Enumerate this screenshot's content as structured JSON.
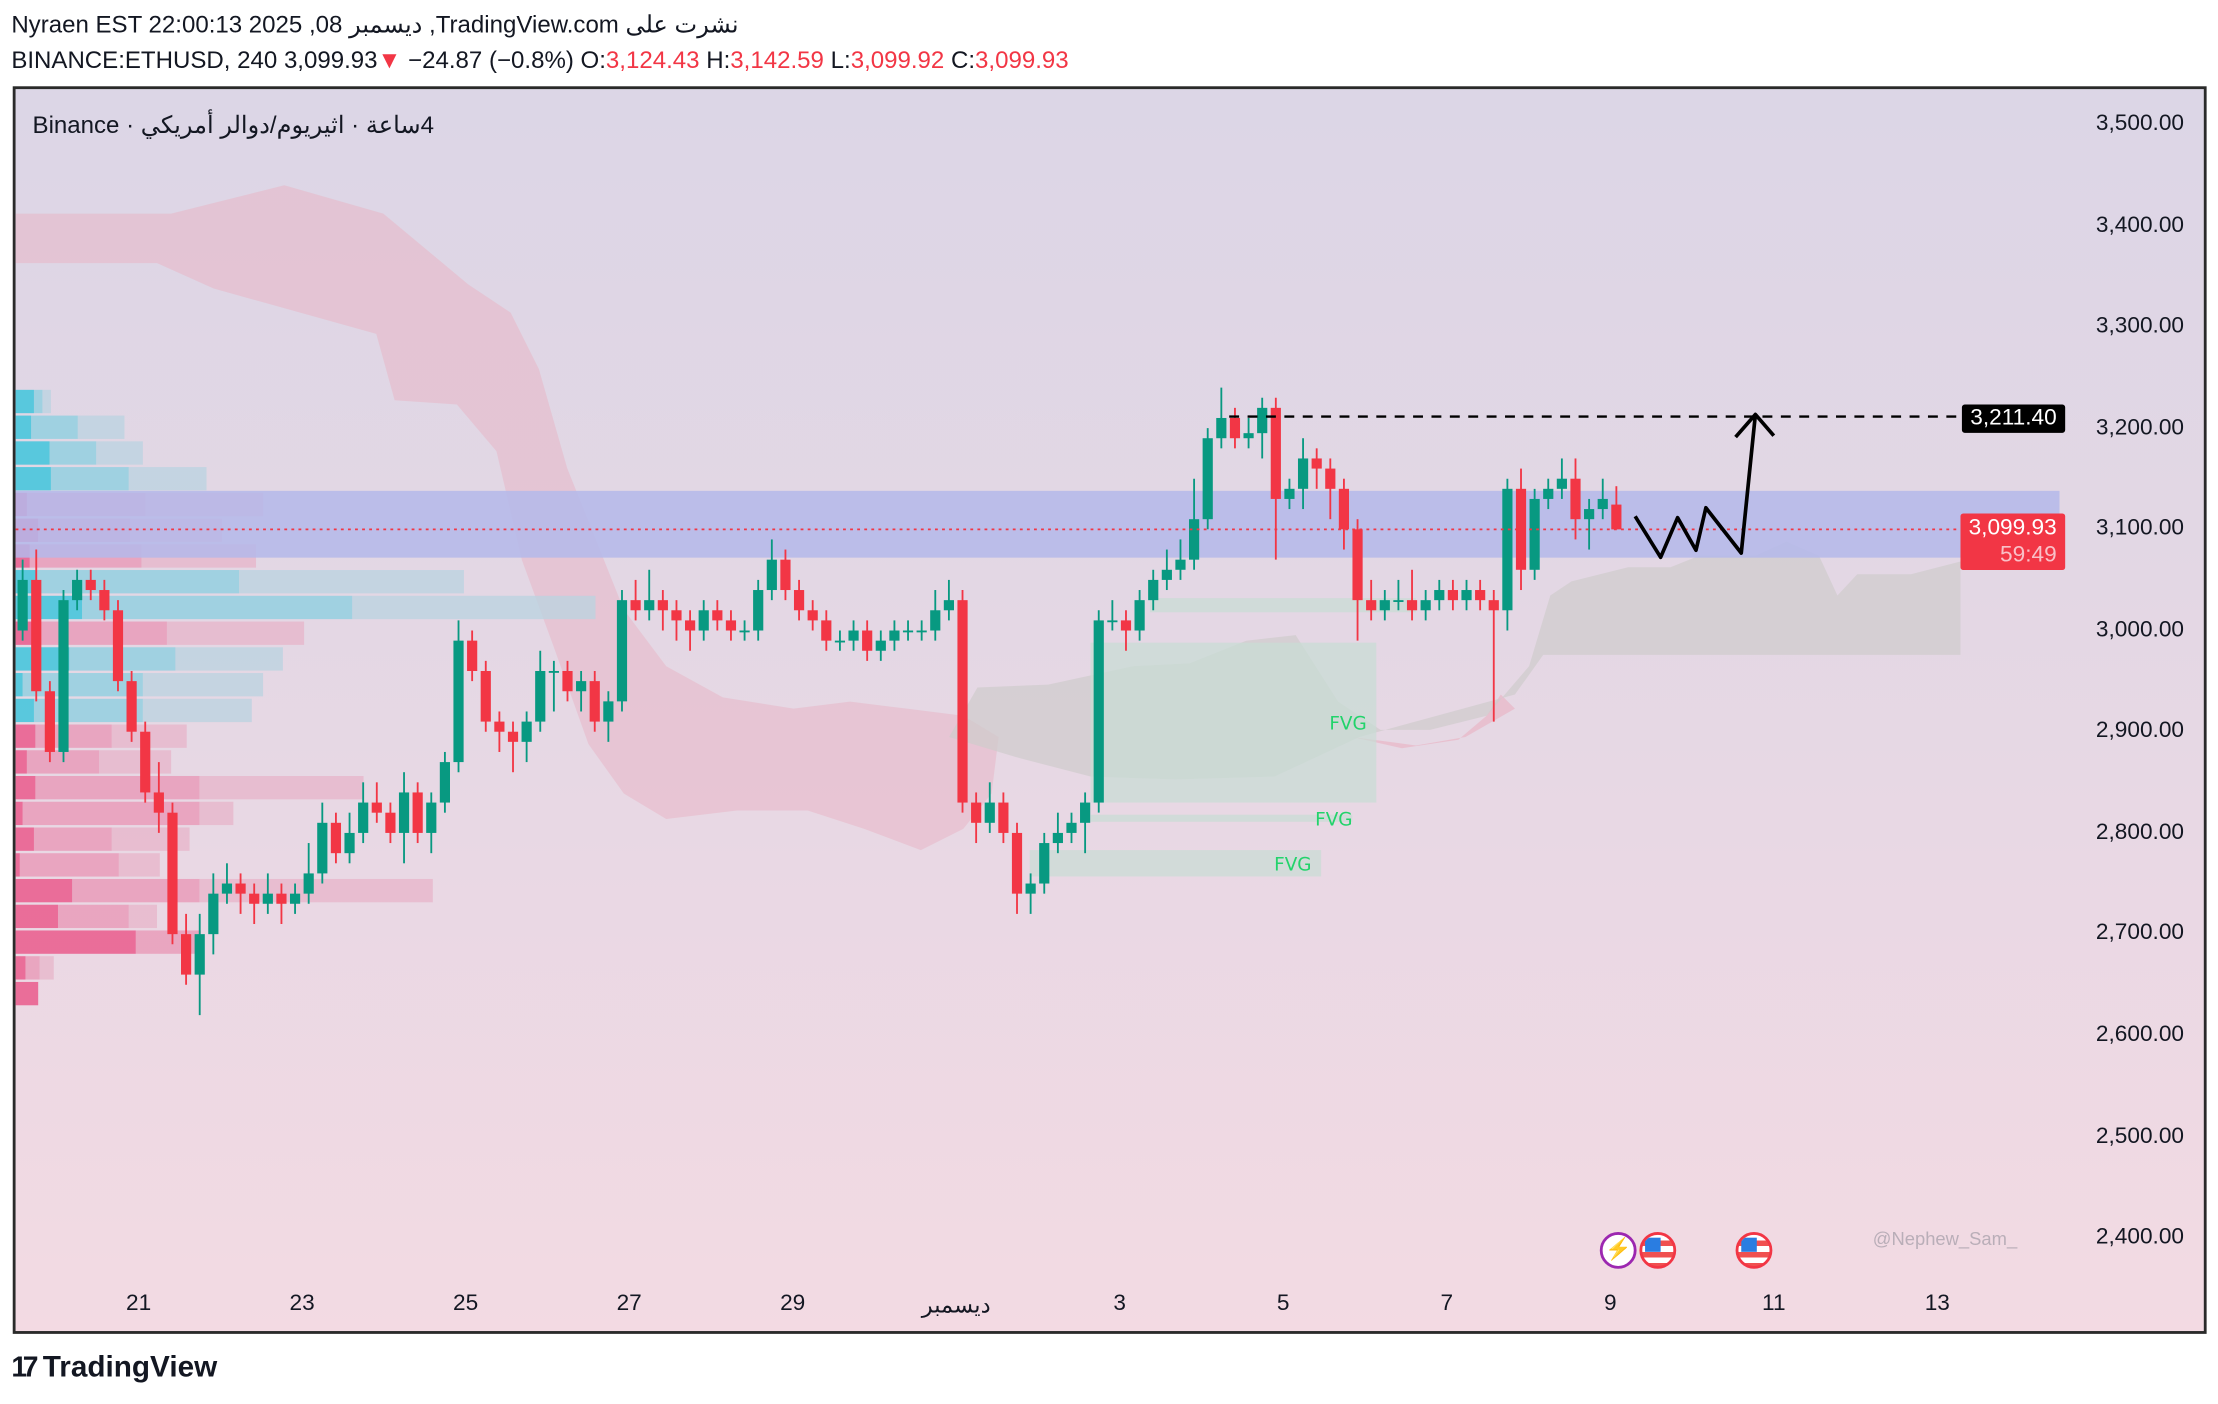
{
  "header": {
    "publish_line": "Nyraen EST 22:00:13 2025 ,08 ربمسيد ,TradingView.com ىلع ترشن",
    "symbol": "BINANCE:ETHUSD, 240",
    "last": "3,099.93",
    "change_arrow": "▼",
    "change": "−24.87 (−0.8%)",
    "o_label": "O:",
    "o": "3,124.43",
    "h_label": "H:",
    "h": "3,142.59",
    "l_label": "L:",
    "l": "3,099.92",
    "c_label": "C:",
    "c": "3,099.93"
  },
  "legend": "Binance · يكيرمأ رلاود/مويريثا · ةعاس4",
  "price_tag_level": "3,211.40",
  "price_tag_last": "3,099.93",
  "price_tag_countdown": "59:49",
  "watermark": "@Nephew_Sam_",
  "footer_logo": "TradingView",
  "footer_logo_mark": "17",
  "events": [
    {
      "icon": "lightning-bolt-icon",
      "glyph": "⚡"
    },
    {
      "icon": "us-flag-icon"
    },
    {
      "icon": "us-flag-icon"
    }
  ],
  "colors": {
    "up": "#089981",
    "down": "#f23645",
    "zone": "#b4b8ea",
    "fvg": "#c8ddd4",
    "fvg_text": "#22d36b"
  },
  "chart_data": {
    "type": "candlestick",
    "interval": "240",
    "y_ticks": [
      "3,500.00",
      "3,400.00",
      "3,300.00",
      "3,200.00",
      "3,100.00",
      "3,000.00",
      "2,900.00",
      "2,800.00",
      "2,700.00",
      "2,600.00",
      "2,500.00",
      "2,400.00"
    ],
    "y_tick_values": [
      3500,
      3400,
      3300,
      3200,
      3100,
      3000,
      2900,
      2800,
      2700,
      2600,
      2500,
      2400
    ],
    "ylim": [
      2400,
      3500
    ],
    "x_ticks": [
      "21",
      "23",
      "25",
      "27",
      "29",
      "ديسمبر",
      "3",
      "5",
      "7",
      "9",
      "11",
      "13"
    ],
    "resistance_level": 3211.4,
    "last_price": 3099.93,
    "supply_zone": [
      3072,
      3138
    ],
    "fvg_label": "FVG",
    "fvgs": [
      [
        2830,
        2988
      ],
      [
        2811,
        2818
      ],
      [
        2757,
        2783
      ],
      [
        3018,
        3032
      ]
    ],
    "candles": [
      [
        3000,
        3070,
        2990,
        3050
      ],
      [
        3050,
        3080,
        2930,
        2940
      ],
      [
        2940,
        2950,
        2870,
        2880
      ],
      [
        2880,
        3040,
        2870,
        3030
      ],
      [
        3030,
        3060,
        3020,
        3050
      ],
      [
        3050,
        3060,
        3030,
        3040
      ],
      [
        3040,
        3050,
        3010,
        3020
      ],
      [
        3020,
        3030,
        2940,
        2950
      ],
      [
        2950,
        2960,
        2890,
        2900
      ],
      [
        2900,
        2910,
        2830,
        2840
      ],
      [
        2840,
        2870,
        2800,
        2820
      ],
      [
        2820,
        2830,
        2690,
        2700
      ],
      [
        2700,
        2720,
        2650,
        2660
      ],
      [
        2660,
        2720,
        2620,
        2700
      ],
      [
        2700,
        2760,
        2680,
        2740
      ],
      [
        2740,
        2770,
        2730,
        2750
      ],
      [
        2750,
        2760,
        2720,
        2740
      ],
      [
        2740,
        2750,
        2710,
        2730
      ],
      [
        2730,
        2760,
        2720,
        2740
      ],
      [
        2740,
        2750,
        2710,
        2730
      ],
      [
        2730,
        2750,
        2720,
        2740
      ],
      [
        2740,
        2790,
        2730,
        2760
      ],
      [
        2760,
        2830,
        2750,
        2810
      ],
      [
        2810,
        2820,
        2770,
        2780
      ],
      [
        2780,
        2820,
        2770,
        2800
      ],
      [
        2800,
        2850,
        2790,
        2830
      ],
      [
        2830,
        2850,
        2810,
        2820
      ],
      [
        2820,
        2830,
        2790,
        2800
      ],
      [
        2800,
        2860,
        2770,
        2840
      ],
      [
        2840,
        2850,
        2790,
        2800
      ],
      [
        2800,
        2840,
        2780,
        2830
      ],
      [
        2830,
        2880,
        2820,
        2870
      ],
      [
        2870,
        3010,
        2860,
        2990
      ],
      [
        2990,
        3000,
        2950,
        2960
      ],
      [
        2960,
        2970,
        2900,
        2910
      ],
      [
        2910,
        2920,
        2880,
        2900
      ],
      [
        2900,
        2910,
        2860,
        2890
      ],
      [
        2890,
        2920,
        2870,
        2910
      ],
      [
        2910,
        2980,
        2900,
        2960
      ],
      [
        2960,
        2970,
        2920,
        2960
      ],
      [
        2960,
        2970,
        2930,
        2940
      ],
      [
        2940,
        2960,
        2920,
        2950
      ],
      [
        2950,
        2960,
        2900,
        2910
      ],
      [
        2910,
        2940,
        2890,
        2930
      ],
      [
        2930,
        3040,
        2920,
        3030
      ],
      [
        3030,
        3050,
        3010,
        3020
      ],
      [
        3020,
        3060,
        3010,
        3030
      ],
      [
        3030,
        3040,
        3000,
        3020
      ],
      [
        3020,
        3030,
        2990,
        3010
      ],
      [
        3010,
        3020,
        2980,
        3000
      ],
      [
        3000,
        3030,
        2990,
        3020
      ],
      [
        3020,
        3030,
        3000,
        3010
      ],
      [
        3010,
        3020,
        2990,
        3000
      ],
      [
        3000,
        3010,
        2990,
        3000
      ],
      [
        3000,
        3050,
        2990,
        3040
      ],
      [
        3040,
        3090,
        3030,
        3070
      ],
      [
        3070,
        3080,
        3030,
        3040
      ],
      [
        3040,
        3050,
        3010,
        3020
      ],
      [
        3020,
        3030,
        3000,
        3010
      ],
      [
        3010,
        3020,
        2980,
        2990
      ],
      [
        2990,
        3000,
        2980,
        2990
      ],
      [
        2990,
        3010,
        2980,
        3000
      ],
      [
        3000,
        3010,
        2970,
        2980
      ],
      [
        2980,
        3000,
        2970,
        2990
      ],
      [
        2990,
        3010,
        2980,
        3000
      ],
      [
        3000,
        3010,
        2990,
        3000
      ],
      [
        3000,
        3010,
        2990,
        3000
      ],
      [
        3000,
        3040,
        2990,
        3020
      ],
      [
        3020,
        3050,
        3010,
        3030
      ],
      [
        3030,
        3040,
        2820,
        2830
      ],
      [
        2830,
        2840,
        2790,
        2810
      ],
      [
        2810,
        2850,
        2800,
        2830
      ],
      [
        2830,
        2840,
        2790,
        2800
      ],
      [
        2800,
        2810,
        2720,
        2740
      ],
      [
        2740,
        2760,
        2720,
        2750
      ],
      [
        2750,
        2800,
        2740,
        2790
      ],
      [
        2790,
        2820,
        2780,
        2800
      ],
      [
        2800,
        2820,
        2790,
        2810
      ],
      [
        2810,
        2840,
        2780,
        2830
      ],
      [
        2830,
        3020,
        2820,
        3010
      ],
      [
        3010,
        3030,
        3000,
        3010
      ],
      [
        3010,
        3020,
        2980,
        3000
      ],
      [
        3000,
        3040,
        2990,
        3030
      ],
      [
        3030,
        3060,
        3020,
        3050
      ],
      [
        3050,
        3080,
        3040,
        3060
      ],
      [
        3060,
        3090,
        3050,
        3070
      ],
      [
        3070,
        3150,
        3060,
        3110
      ],
      [
        3110,
        3200,
        3100,
        3190
      ],
      [
        3190,
        3240,
        3180,
        3210
      ],
      [
        3210,
        3220,
        3180,
        3190
      ],
      [
        3190,
        3210,
        3180,
        3195
      ],
      [
        3195,
        3230,
        3170,
        3220
      ],
      [
        3220,
        3230,
        3070,
        3130
      ],
      [
        3130,
        3150,
        3120,
        3140
      ],
      [
        3140,
        3190,
        3120,
        3170
      ],
      [
        3170,
        3180,
        3140,
        3160
      ],
      [
        3160,
        3170,
        3110,
        3140
      ],
      [
        3140,
        3150,
        3080,
        3100
      ],
      [
        3100,
        3110,
        2990,
        3030
      ],
      [
        3030,
        3050,
        3010,
        3020
      ],
      [
        3020,
        3040,
        3010,
        3030
      ],
      [
        3030,
        3050,
        3020,
        3030
      ],
      [
        3030,
        3060,
        3010,
        3020
      ],
      [
        3020,
        3040,
        3010,
        3030
      ],
      [
        3030,
        3050,
        3020,
        3040
      ],
      [
        3040,
        3050,
        3020,
        3030
      ],
      [
        3030,
        3050,
        3020,
        3040
      ],
      [
        3040,
        3050,
        3020,
        3030
      ],
      [
        3030,
        3040,
        2910,
        3020
      ],
      [
        3020,
        3150,
        3000,
        3140
      ],
      [
        3140,
        3160,
        3040,
        3060
      ],
      [
        3060,
        3140,
        3050,
        3130
      ],
      [
        3130,
        3150,
        3120,
        3140
      ],
      [
        3140,
        3170,
        3130,
        3150
      ],
      [
        3150,
        3170,
        3090,
        3110
      ],
      [
        3110,
        3130,
        3080,
        3120
      ],
      [
        3120,
        3150,
        3110,
        3130
      ],
      [
        3124.43,
        3142.59,
        3099.92,
        3099.93
      ]
    ]
  }
}
